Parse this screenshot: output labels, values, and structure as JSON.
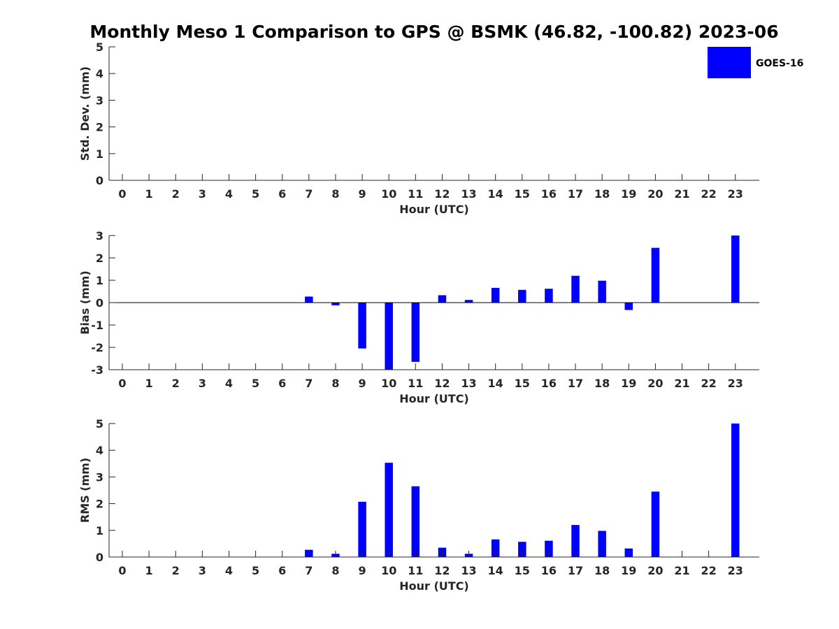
{
  "title": "Monthly Meso 1 Comparison to GPS @ BSMK (46.82, -100.82) 2023-06",
  "colors": {
    "bar": "#0000ff",
    "axis": "#262626",
    "background": "#ffffff"
  },
  "legend": {
    "label": "GOES-16",
    "placement": "top-right"
  },
  "chart_data": [
    {
      "type": "bar",
      "xlabel": "Hour (UTC)",
      "ylabel": "Std. Dev. (mm)",
      "ylim": [
        0,
        5
      ],
      "yticks": [
        "0",
        "1",
        "2",
        "3",
        "4",
        "5"
      ],
      "categories": [
        "0",
        "1",
        "2",
        "3",
        "4",
        "5",
        "6",
        "7",
        "8",
        "9",
        "10",
        "11",
        "12",
        "13",
        "14",
        "15",
        "16",
        "17",
        "18",
        "19",
        "20",
        "21",
        "22",
        "23"
      ],
      "series": [
        {
          "name": "GOES-16",
          "values": [
            null,
            null,
            null,
            null,
            null,
            null,
            null,
            null,
            null,
            null,
            null,
            null,
            null,
            null,
            null,
            null,
            null,
            null,
            null,
            null,
            null,
            null,
            null,
            null
          ]
        }
      ]
    },
    {
      "type": "bar",
      "xlabel": "Hour (UTC)",
      "ylabel": "Bias (mm)",
      "ylim": [
        -3,
        3
      ],
      "yticks": [
        "-3",
        "-2",
        "-1",
        "0",
        "1",
        "2",
        "3"
      ],
      "categories": [
        "0",
        "1",
        "2",
        "3",
        "4",
        "5",
        "6",
        "7",
        "8",
        "9",
        "10",
        "11",
        "12",
        "13",
        "14",
        "15",
        "16",
        "17",
        "18",
        "19",
        "20",
        "21",
        "22",
        "23"
      ],
      "series": [
        {
          "name": "GOES-16",
          "values": [
            null,
            null,
            null,
            null,
            null,
            null,
            null,
            0.27,
            -0.12,
            -2.05,
            -3.0,
            -2.65,
            0.33,
            0.12,
            0.66,
            0.57,
            0.62,
            1.2,
            0.98,
            -0.33,
            2.45,
            null,
            null,
            3.0
          ]
        }
      ]
    },
    {
      "type": "bar",
      "xlabel": "Hour (UTC)",
      "ylabel": "RMS (mm)",
      "ylim": [
        0,
        5
      ],
      "yticks": [
        "0",
        "1",
        "2",
        "3",
        "4",
        "5"
      ],
      "categories": [
        "0",
        "1",
        "2",
        "3",
        "4",
        "5",
        "6",
        "7",
        "8",
        "9",
        "10",
        "11",
        "12",
        "13",
        "14",
        "15",
        "16",
        "17",
        "18",
        "19",
        "20",
        "21",
        "22",
        "23"
      ],
      "series": [
        {
          "name": "GOES-16",
          "values": [
            null,
            null,
            null,
            null,
            null,
            null,
            null,
            0.27,
            0.12,
            2.07,
            3.53,
            2.65,
            0.35,
            0.12,
            0.66,
            0.57,
            0.61,
            1.2,
            0.98,
            0.32,
            2.45,
            null,
            null,
            5.0
          ]
        }
      ]
    }
  ]
}
